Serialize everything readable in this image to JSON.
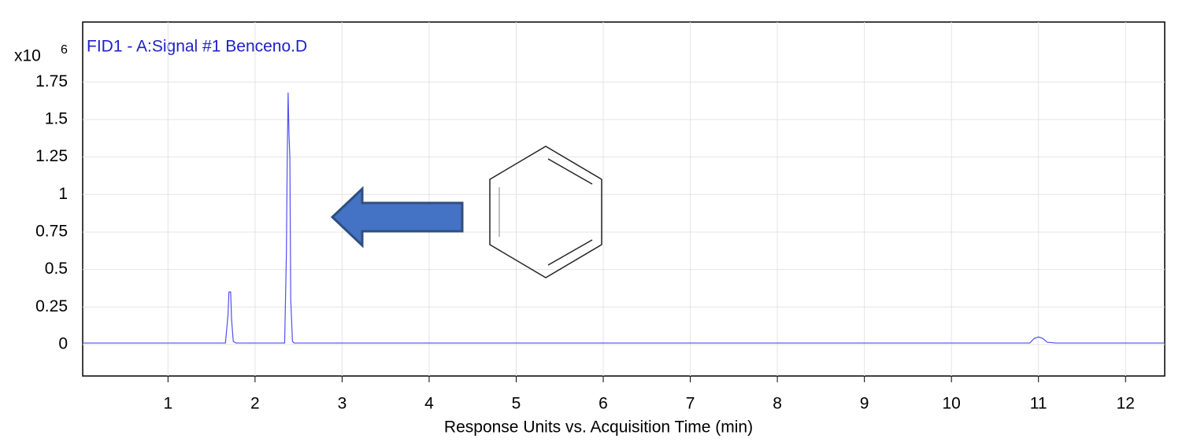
{
  "chart_data": {
    "type": "line",
    "title": "FID1 - A:Signal #1 Benceno.D",
    "x_label": "Response Units vs. Acquisition Time (min)",
    "y_multiplier": "x10",
    "y_exponent": "6",
    "x": [
      0.02,
      1.66,
      1.69,
      1.7,
      1.72,
      1.73,
      1.75,
      1.78,
      2.34,
      2.36,
      2.37,
      2.38,
      2.39,
      2.4,
      2.41,
      2.43,
      2.45,
      10.9,
      10.95,
      11.0,
      11.05,
      11.1,
      11.2,
      12.45
    ],
    "values": [
      0.01,
      0.01,
      0.2,
      0.35,
      0.35,
      0.17,
      0.02,
      0.01,
      0.01,
      0.6,
      1.25,
      1.68,
      1.4,
      1.25,
      0.3,
      0.02,
      0.01,
      0.01,
      0.04,
      0.05,
      0.04,
      0.015,
      0.01,
      0.01
    ],
    "color": "#5050f0",
    "xlim": [
      0.02,
      12.45
    ],
    "ylim": [
      -0.21,
      2.15
    ],
    "xticks": [
      1,
      2,
      3,
      4,
      5,
      6,
      7,
      8,
      9,
      10,
      11,
      12
    ],
    "yticks": [
      0,
      0.25,
      0.5,
      0.75,
      1,
      1.25,
      1.5,
      1.75
    ],
    "grid": true
  }
}
